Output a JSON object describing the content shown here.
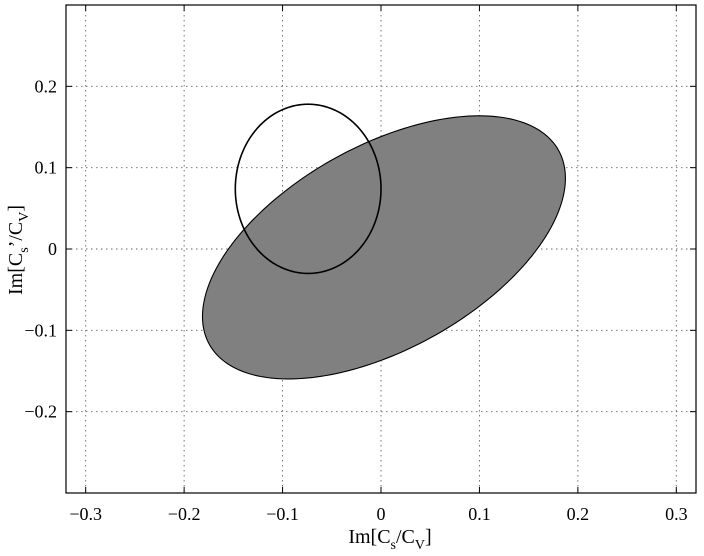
{
  "chart_data": {
    "type": "scatter",
    "title": "",
    "xlabel": {
      "main1": "Im[C",
      "sub1": "s",
      "main2": "/C",
      "sub2": "V",
      "main3": "]"
    },
    "ylabel": {
      "main1": "Im[C",
      "sub1": "s",
      "main2": "’/C",
      "sub2": "V",
      "main3": "]"
    },
    "xlim": [
      -0.32,
      0.32
    ],
    "ylim": [
      -0.3,
      0.3
    ],
    "xticks": [
      -0.3,
      -0.2,
      -0.1,
      0,
      0.1,
      0.2,
      0.3
    ],
    "yticks": [
      -0.2,
      -0.1,
      0,
      0.1,
      0.2
    ],
    "xtick_labels": [
      "−0.3",
      "−0.2",
      "−0.1",
      "0",
      "0.1",
      "0.2",
      "0.3"
    ],
    "ytick_labels": [
      "−0.2",
      "−0.1",
      "0",
      "0.1",
      "0.2"
    ],
    "grid": true,
    "regions": [
      {
        "shape": "ellipse",
        "fill": "#808080",
        "stroke": "#000000",
        "center": [
          0.003,
          0.002
        ],
        "semi_axis_major": 0.215,
        "semi_axis_minor": 0.118,
        "rotation_deg": 38
      },
      {
        "shape": "ellipse",
        "fill": "none",
        "stroke": "#000000",
        "center": [
          -0.074,
          0.074
        ],
        "semi_axis_x": 0.074,
        "semi_axis_y": 0.104,
        "rotation_deg": 0
      }
    ]
  }
}
